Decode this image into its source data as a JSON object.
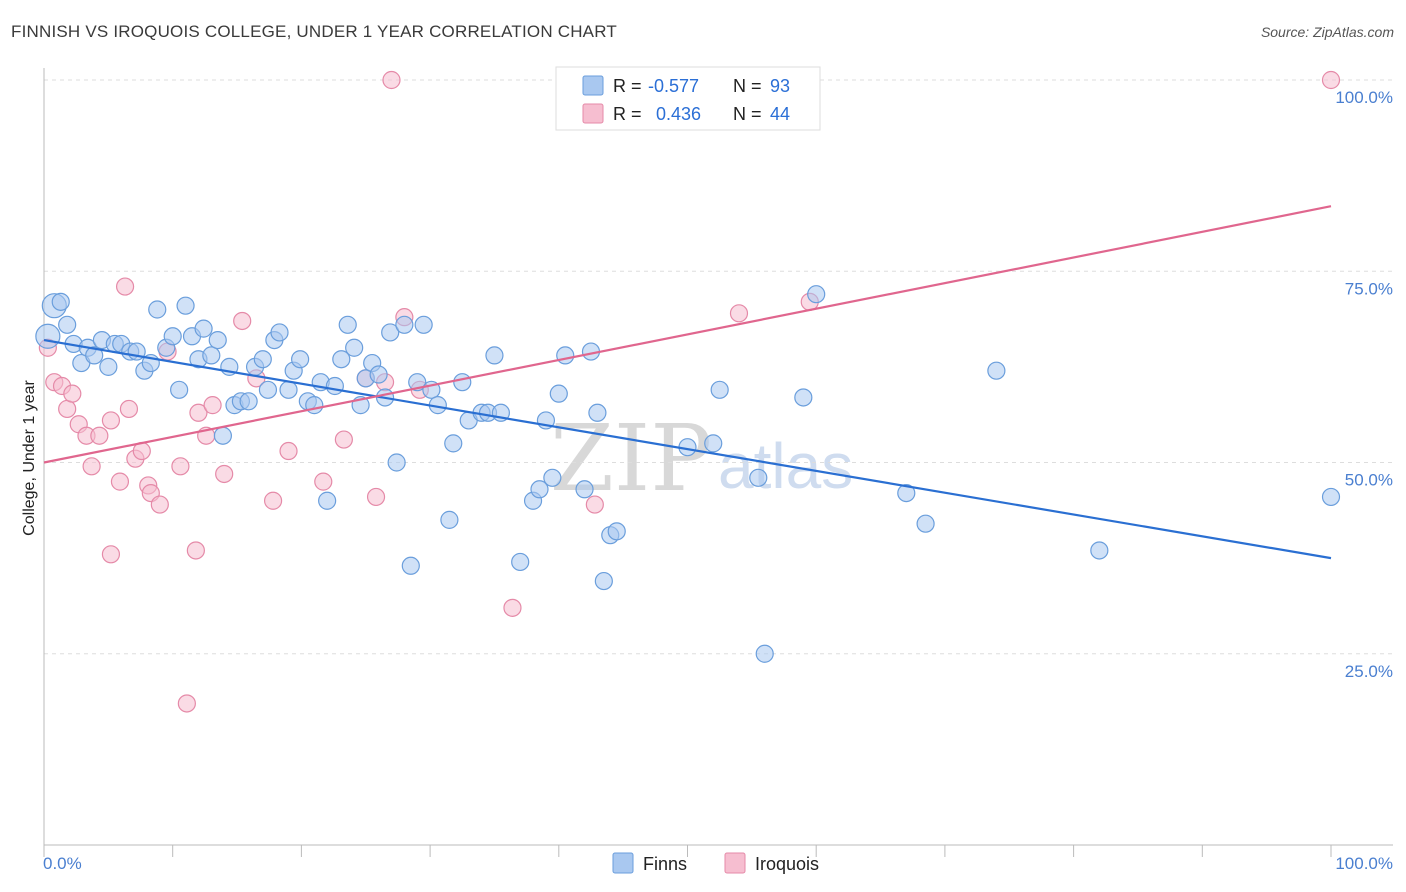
{
  "title": "FINNISH VS IROQUOIS COLLEGE, UNDER 1 YEAR CORRELATION CHART",
  "source": "Source: ZipAtlas.com",
  "watermark": {
    "zip": "ZIP",
    "atlas": "atlas"
  },
  "colors": {
    "finns_fill": "#a9c8f0",
    "finns_stroke": "#6a9edc",
    "finns_line": "#2a6fd2",
    "iroquois_fill": "#f6bed0",
    "iroquois_stroke": "#e58aa8",
    "iroquois_line": "#e0668e",
    "grid": "#dddddd",
    "tick_text": "#4a7fd0"
  },
  "legend": {
    "finns": {
      "r_label": "R =",
      "r_value": "-0.577",
      "n_label": "N =",
      "n_value": "93"
    },
    "iroquois": {
      "r_label": "R =",
      "r_value": "0.436",
      "n_label": "N =",
      "n_value": "44"
    }
  },
  "chart_data": {
    "type": "scatter",
    "title": "FINNISH VS IROQUOIS COLLEGE, UNDER 1 YEAR CORRELATION CHART",
    "xlabel": "",
    "ylabel": "College, Under 1 year",
    "xlim": [
      0,
      100
    ],
    "ylim": [
      0,
      105
    ],
    "x_tick_labels": [
      "0.0%",
      "100.0%"
    ],
    "y_ticks": [
      25,
      50,
      75,
      100
    ],
    "y_tick_labels": [
      "25.0%",
      "50.0%",
      "75.0%",
      "100.0%"
    ],
    "grid": true,
    "legend_position": "top-center",
    "series": [
      {
        "name": "Finns",
        "trend": {
          "x": [
            0,
            100
          ],
          "y": [
            66,
            37.5
          ]
        },
        "points": [
          [
            0.3,
            66.5
          ],
          [
            0.8,
            70.5
          ],
          [
            1.3,
            71
          ],
          [
            1.8,
            68
          ],
          [
            2.3,
            65.5
          ],
          [
            2.9,
            63
          ],
          [
            3.4,
            65
          ],
          [
            3.9,
            64
          ],
          [
            4.5,
            66
          ],
          [
            5,
            62.5
          ],
          [
            5.5,
            65.5
          ],
          [
            6,
            65.5
          ],
          [
            6.7,
            64.5
          ],
          [
            7.2,
            64.5
          ],
          [
            7.8,
            62
          ],
          [
            8.3,
            63
          ],
          [
            8.8,
            70
          ],
          [
            9.5,
            65
          ],
          [
            10,
            66.5
          ],
          [
            10.5,
            59.5
          ],
          [
            11,
            70.5
          ],
          [
            11.5,
            66.5
          ],
          [
            12,
            63.5
          ],
          [
            12.4,
            67.5
          ],
          [
            13,
            64
          ],
          [
            13.5,
            66
          ],
          [
            13.9,
            53.5
          ],
          [
            14.4,
            62.5
          ],
          [
            14.8,
            57.5
          ],
          [
            15.3,
            58
          ],
          [
            15.9,
            58
          ],
          [
            16.4,
            62.5
          ],
          [
            17,
            63.5
          ],
          [
            17.4,
            59.5
          ],
          [
            17.9,
            66
          ],
          [
            18.3,
            67
          ],
          [
            19,
            59.5
          ],
          [
            19.4,
            62
          ],
          [
            19.9,
            63.5
          ],
          [
            20.5,
            58
          ],
          [
            21,
            57.5
          ],
          [
            21.5,
            60.5
          ],
          [
            22,
            45
          ],
          [
            22.6,
            60
          ],
          [
            23.1,
            63.5
          ],
          [
            23.6,
            68
          ],
          [
            24.1,
            65
          ],
          [
            24.6,
            57.5
          ],
          [
            25,
            61
          ],
          [
            25.5,
            63
          ],
          [
            26,
            61.5
          ],
          [
            26.5,
            58.5
          ],
          [
            26.9,
            67
          ],
          [
            27.4,
            50
          ],
          [
            28,
            68
          ],
          [
            28.5,
            36.5
          ],
          [
            29,
            60.5
          ],
          [
            29.5,
            68
          ],
          [
            30.1,
            59.5
          ],
          [
            30.6,
            57.5
          ],
          [
            31.5,
            42.5
          ],
          [
            31.8,
            52.5
          ],
          [
            32.5,
            60.5
          ],
          [
            33,
            55.5
          ],
          [
            34,
            56.5
          ],
          [
            34.5,
            56.5
          ],
          [
            35,
            64
          ],
          [
            35.5,
            56.5
          ],
          [
            37,
            37
          ],
          [
            38,
            45
          ],
          [
            38.5,
            46.5
          ],
          [
            39,
            55.5
          ],
          [
            39.5,
            48
          ],
          [
            40,
            59
          ],
          [
            40.5,
            64
          ],
          [
            42,
            46.5
          ],
          [
            42.5,
            64.5
          ],
          [
            43,
            56.5
          ],
          [
            43.5,
            34.5
          ],
          [
            44,
            40.5
          ],
          [
            44.5,
            41
          ],
          [
            50,
            52
          ],
          [
            52,
            52.5
          ],
          [
            52.5,
            59.5
          ],
          [
            55.5,
            48
          ],
          [
            56,
            25
          ],
          [
            59,
            58.5
          ],
          [
            60,
            72
          ],
          [
            67,
            46
          ],
          [
            68.5,
            42
          ],
          [
            74,
            62
          ],
          [
            82,
            38.5
          ],
          [
            100,
            45.5
          ]
        ]
      },
      {
        "name": "Iroquois",
        "trend": {
          "x": [
            0,
            100
          ],
          "y": [
            50,
            83.5
          ]
        },
        "points": [
          [
            0.3,
            65
          ],
          [
            0.8,
            60.5
          ],
          [
            1.4,
            60
          ],
          [
            1.8,
            57
          ],
          [
            2.2,
            59
          ],
          [
            2.7,
            55
          ],
          [
            3.3,
            53.5
          ],
          [
            3.7,
            49.5
          ],
          [
            4.3,
            53.5
          ],
          [
            5.2,
            55.5
          ],
          [
            5.2,
            38
          ],
          [
            5.9,
            47.5
          ],
          [
            6.3,
            73
          ],
          [
            6.6,
            57
          ],
          [
            7.1,
            50.5
          ],
          [
            7.6,
            51.5
          ],
          [
            8.1,
            47
          ],
          [
            8.3,
            46
          ],
          [
            9,
            44.5
          ],
          [
            9.6,
            64.5
          ],
          [
            10.6,
            49.5
          ],
          [
            11.1,
            18.5
          ],
          [
            11.8,
            38.5
          ],
          [
            12,
            56.5
          ],
          [
            12.6,
            53.5
          ],
          [
            13.1,
            57.5
          ],
          [
            14,
            48.5
          ],
          [
            15.4,
            68.5
          ],
          [
            16.5,
            61
          ],
          [
            17.8,
            45
          ],
          [
            19,
            51.5
          ],
          [
            21.7,
            47.5
          ],
          [
            23.3,
            53
          ],
          [
            25,
            61
          ],
          [
            25.8,
            45.5
          ],
          [
            26.5,
            60.5
          ],
          [
            27,
            100
          ],
          [
            28,
            69
          ],
          [
            29.2,
            59.5
          ],
          [
            36.4,
            31
          ],
          [
            42.8,
            44.5
          ],
          [
            54,
            69.5
          ],
          [
            59.5,
            71
          ],
          [
            100,
            100
          ]
        ]
      }
    ]
  },
  "bottom_legend": {
    "finns": "Finns",
    "iroquois": "Iroquois"
  }
}
